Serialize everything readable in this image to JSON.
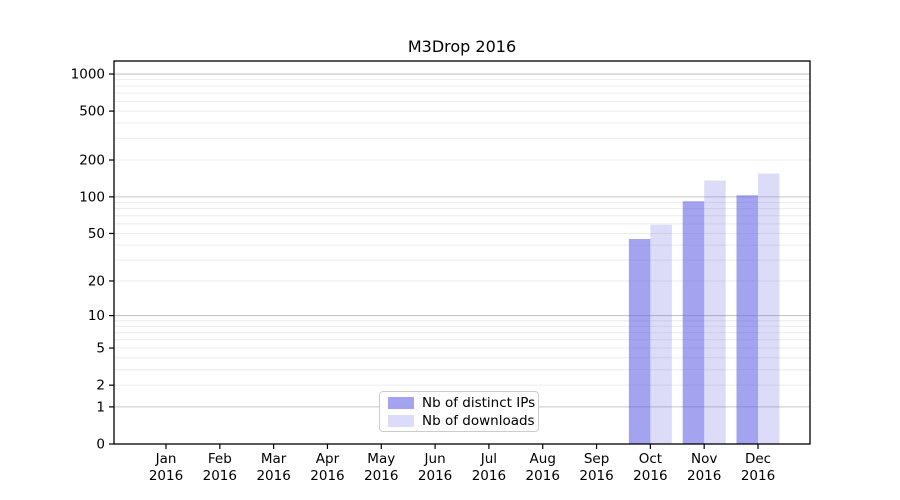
{
  "chart_data": {
    "type": "bar",
    "title": "M3Drop 2016",
    "year_label": "2016",
    "categories": [
      "Jan",
      "Feb",
      "Mar",
      "Apr",
      "May",
      "Jun",
      "Jul",
      "Aug",
      "Sep",
      "Oct",
      "Nov",
      "Dec"
    ],
    "series": [
      {
        "name": "Nb of distinct IPs",
        "values": [
          0,
          0,
          0,
          0,
          0,
          0,
          0,
          0,
          0,
          45,
          92,
          103
        ]
      },
      {
        "name": "Nb of downloads",
        "values": [
          0,
          0,
          0,
          0,
          0,
          0,
          0,
          0,
          0,
          59,
          136,
          155
        ]
      }
    ],
    "yticks": [
      0,
      1,
      2,
      5,
      10,
      20,
      50,
      100,
      200,
      500,
      1000
    ],
    "yscale": "log1p",
    "ylim": [
      0,
      1330
    ],
    "xlabel": "",
    "ylabel": "",
    "grid": "on",
    "legend": {
      "position": "lower-center",
      "items": [
        {
          "label": "Nb of distinct IPs"
        },
        {
          "label": "Nb of downloads"
        }
      ]
    },
    "colors": {
      "bar_ips": "rgba(102,102,228,0.6)",
      "bar_downloads": "rgba(102,102,228,0.23)",
      "grid_major": "#c6c6c6",
      "grid_minor": "#ececec",
      "axis": "#000000",
      "text": "#000000",
      "background": "#ffffff"
    }
  }
}
